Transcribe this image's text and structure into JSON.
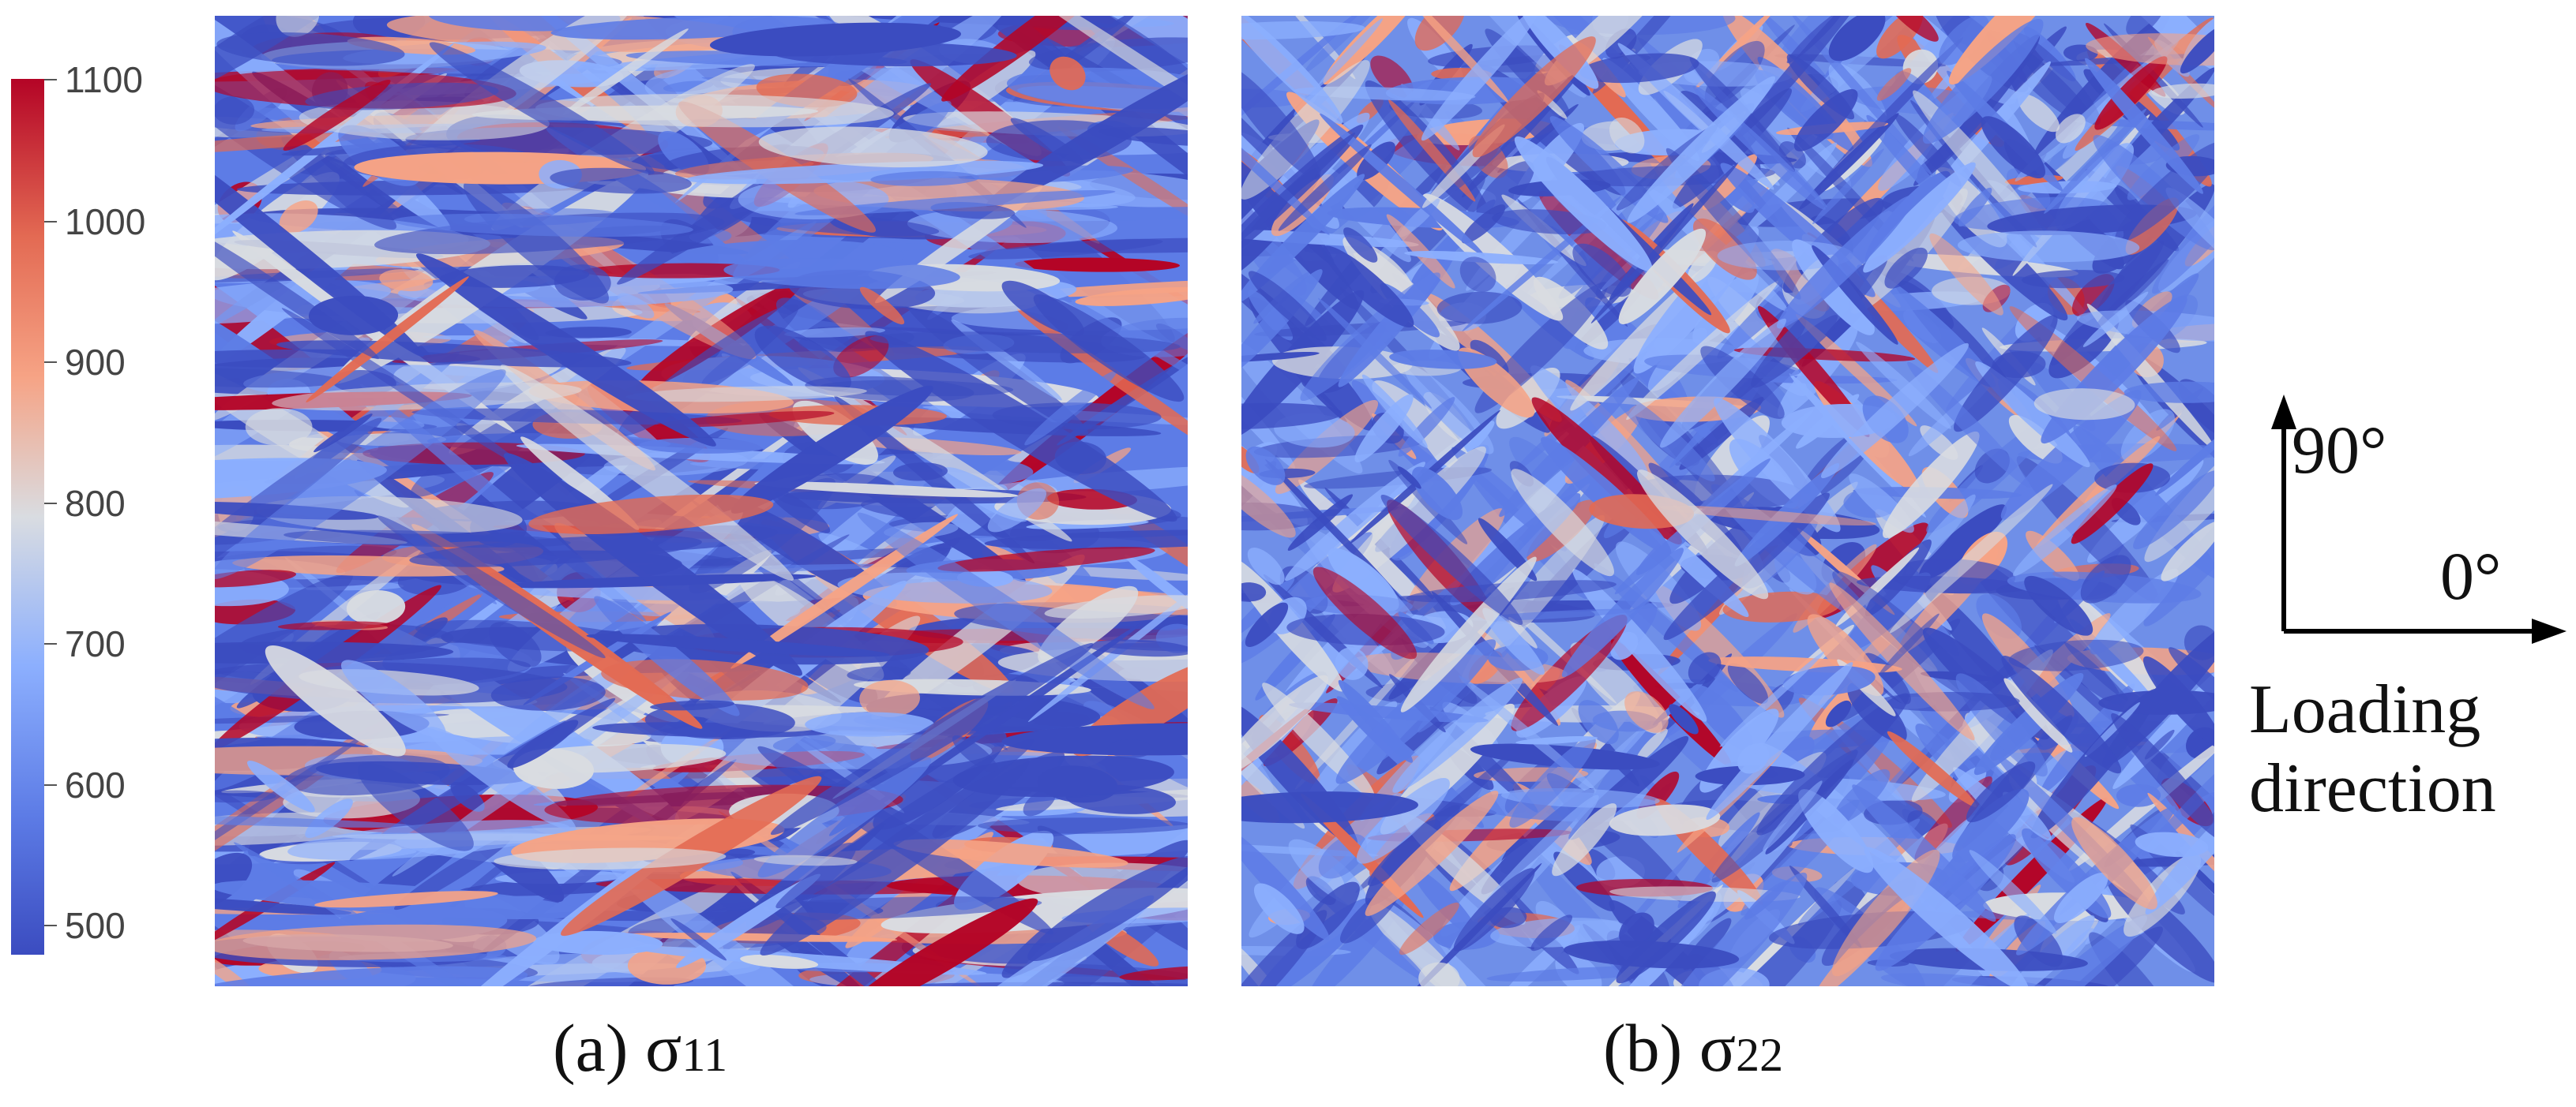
{
  "colorbar": {
    "ticks": [
      "1100",
      "1000",
      "900",
      "800",
      "700",
      "600",
      "500"
    ],
    "colors": [
      "#3b4cc0",
      "#5d7ce6",
      "#8caffe",
      "#d9dce1",
      "#f6a385",
      "#e36a53",
      "#b40426"
    ]
  },
  "panels": [
    {
      "caption_prefix": "(a) ",
      "symbol": "σ",
      "subscript": "11"
    },
    {
      "caption_prefix": "(b) ",
      "symbol": "σ",
      "subscript": "22"
    }
  ],
  "axes": {
    "label_90": "90°",
    "label_0": "0°",
    "caption_line1": "Loading",
    "caption_line2": "direction"
  }
}
